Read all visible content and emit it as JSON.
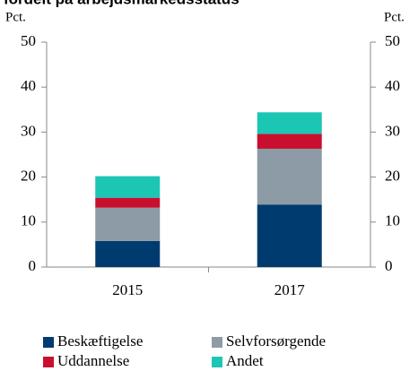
{
  "chart_data": {
    "type": "stacked_bar",
    "title": "fordelt på arbejdsmarkedsstatus",
    "ylabel": "Pct.",
    "y2label": "Pct.",
    "categories": [
      "2015",
      "2017"
    ],
    "series": [
      {
        "name": "Beskæftigelse",
        "color": "#003b6f",
        "values": [
          5.8,
          13.9
        ]
      },
      {
        "name": "Selvforsørgende",
        "color": "#8c9ba5",
        "values": [
          7.4,
          12.4
        ]
      },
      {
        "name": "Uddannelse",
        "color": "#c8102e",
        "values": [
          2.2,
          3.3
        ]
      },
      {
        "name": "Andet",
        "color": "#1cc6b4",
        "values": [
          4.8,
          4.8
        ]
      }
    ],
    "ylim": [
      0,
      50
    ],
    "yticks": [
      0,
      10,
      20,
      30,
      40,
      50
    ],
    "y2lim": [
      0,
      50
    ],
    "y2ticks": [
      0,
      10,
      20,
      30,
      40,
      50
    ],
    "grid": false
  }
}
